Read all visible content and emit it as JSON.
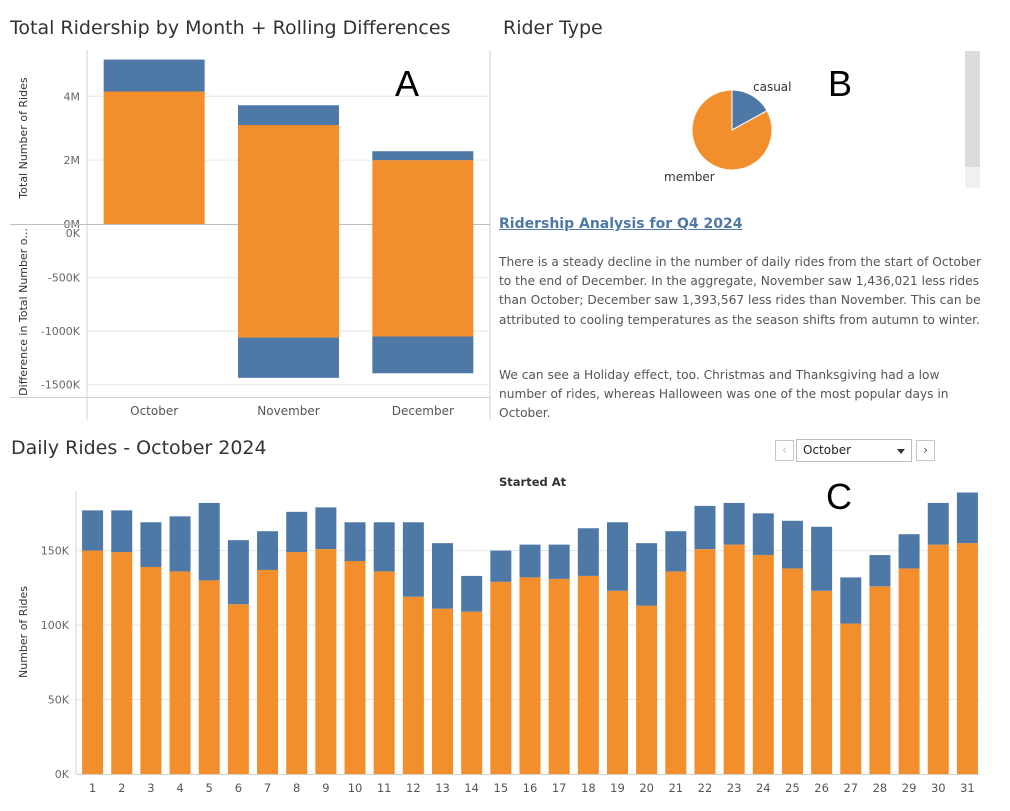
{
  "colors": {
    "member": "#f28e2b",
    "casual": "#4e79a7",
    "grid": "#e6e6e6",
    "axis": "#d0d0d0"
  },
  "panel_a": {
    "title": "Total Ridership by Month + Rolling Differences",
    "marker": "A",
    "ylabel_top": "Total Number of Rides",
    "ylabel_bottom": "Difference in Total Number o..."
  },
  "panel_b": {
    "title": "Rider Type",
    "marker": "B",
    "label_casual": "casual",
    "label_member": "member"
  },
  "analysis": {
    "title": "Ridership Analysis for Q4 2024",
    "paragraph1": "There is a steady decline in the number of daily rides from the start of October to the end of December. In the aggregate, November saw 1,436,021 less rides than October; December saw 1,393,567 less rides than November. This can be attributed to cooling temperatures as the season shifts from autumn to winter.",
    "paragraph2": "We can see a Holiday effect, too. Christmas and Thanksgiving had a low number of rides, whereas Halloween was one of the most popular days in October."
  },
  "panel_c": {
    "title": "Daily Rides - October 2024",
    "marker": "C",
    "filter_caption": "Started At",
    "month_selected": "October",
    "prev_glyph": "‹",
    "next_glyph": "›"
  },
  "chart_data": [
    {
      "type": "bar",
      "stacked": true,
      "categories": [
        "October",
        "November",
        "December"
      ],
      "ylabel": "Total Number of Rides",
      "yticks": [
        "0M",
        "2M",
        "4M"
      ],
      "ylim": [
        0,
        5200000
      ],
      "series": [
        {
          "values": [
            4150000,
            3100000,
            2000000
          ]
        },
        {
          "values": [
            1000000,
            620000,
            280000
          ]
        }
      ]
    },
    {
      "type": "bar",
      "stacked": true,
      "categories": [
        "October",
        "November",
        "December"
      ],
      "ylabel": "Difference in Total Number o...",
      "yticks": [
        "0K",
        "-500K",
        "-1000K",
        "-1500K"
      ],
      "ylim": [
        -1540000,
        0
      ],
      "series": [
        {
          "values": [
            0,
            -1060000,
            -1050000
          ]
        },
        {
          "values": [
            0,
            -376021,
            -343567
          ]
        }
      ]
    },
    {
      "type": "pie",
      "title": "Rider Type",
      "labels": [
        "casual",
        "member"
      ],
      "values": [
        17,
        83
      ]
    },
    {
      "type": "bar",
      "stacked": true,
      "title": "Daily Rides - October 2024",
      "ylabel": "Number of Rides",
      "yticks": [
        "0K",
        "50K",
        "100K",
        "150K"
      ],
      "ylim": [
        0,
        190000
      ],
      "categories": [
        "1",
        "2",
        "3",
        "4",
        "5",
        "6",
        "7",
        "8",
        "9",
        "10",
        "11",
        "12",
        "13",
        "14",
        "15",
        "16",
        "17",
        "18",
        "19",
        "20",
        "21",
        "22",
        "23",
        "24",
        "25",
        "26",
        "27",
        "28",
        "29",
        "30",
        "31"
      ],
      "series": [
        {
          "values": [
            150000,
            149000,
            139000,
            136000,
            130000,
            114000,
            137000,
            149000,
            151000,
            143000,
            136000,
            119000,
            111000,
            109000,
            129000,
            132000,
            131000,
            133000,
            123000,
            113000,
            136000,
            151000,
            154000,
            147000,
            138000,
            123000,
            101000,
            126000,
            138000,
            154000,
            155000
          ]
        },
        {
          "values": [
            27000,
            28000,
            30000,
            37000,
            52000,
            43000,
            26000,
            27000,
            28000,
            26000,
            33000,
            50000,
            44000,
            24000,
            21000,
            22000,
            23000,
            32000,
            46000,
            42000,
            27000,
            29000,
            28000,
            28000,
            32000,
            43000,
            31000,
            21000,
            23000,
            28000,
            34000
          ]
        }
      ]
    }
  ]
}
